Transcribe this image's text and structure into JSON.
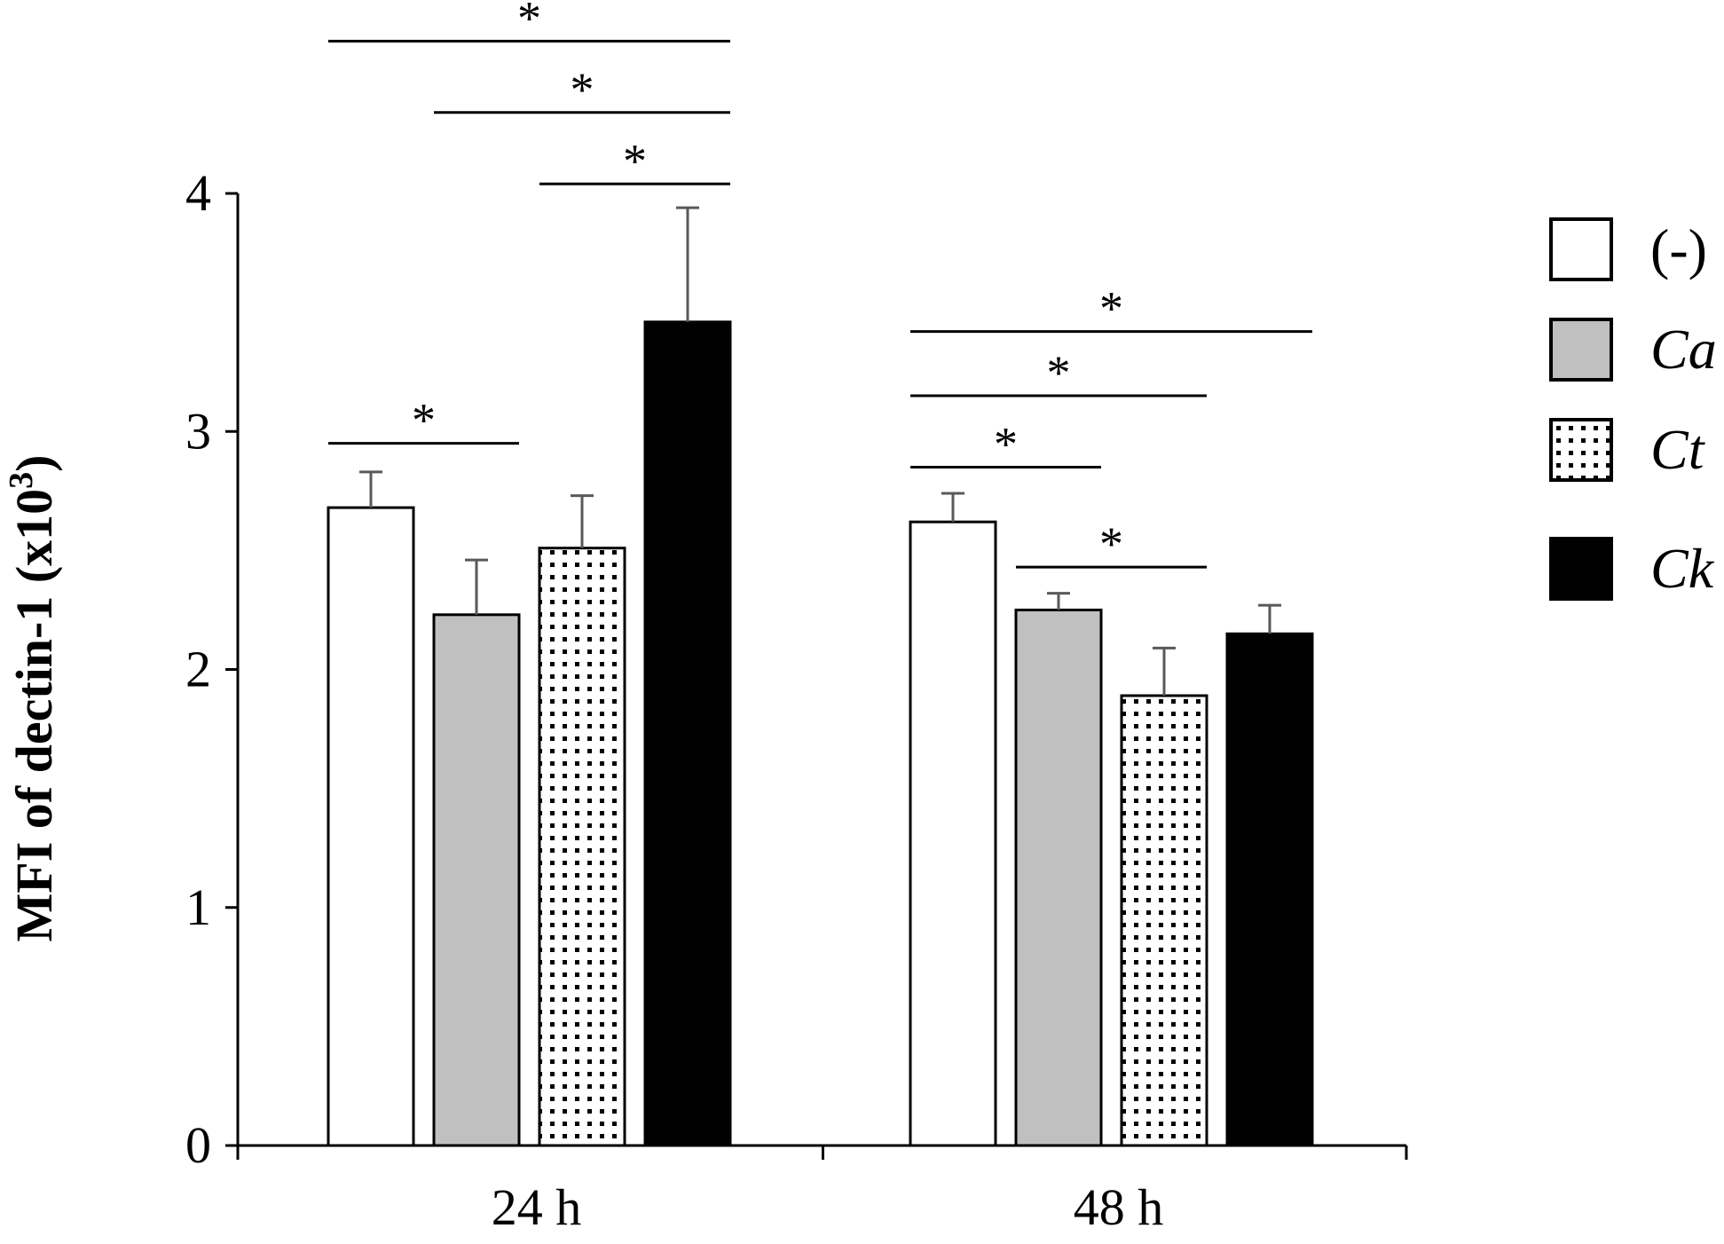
{
  "chart_data": {
    "type": "bar",
    "categories": [
      "24 h",
      "48 h"
    ],
    "series": [
      {
        "name": "(-)",
        "italic": false,
        "fill": "white",
        "values": [
          2.68,
          2.62
        ],
        "errors": [
          0.15,
          0.12
        ]
      },
      {
        "name": "Ca",
        "italic": true,
        "fill": "gray",
        "values": [
          2.23,
          2.25
        ],
        "errors": [
          0.23,
          0.07
        ]
      },
      {
        "name": "Ct",
        "italic": true,
        "fill": "dotted",
        "values": [
          2.51,
          1.89
        ],
        "errors": [
          0.22,
          0.2
        ]
      },
      {
        "name": "Ck",
        "italic": true,
        "fill": "black",
        "values": [
          3.46,
          2.15
        ],
        "errors": [
          0.48,
          0.12
        ]
      }
    ],
    "ylabel": "MFI of dectin-1 (x10",
    "ylabel_superscript": "3",
    "ylabel_close": ")",
    "ylim": [
      0,
      4
    ],
    "yticks": [
      0,
      1,
      2,
      3,
      4
    ],
    "ytick_labels": [
      "0",
      "1",
      "2",
      "3",
      "4"
    ],
    "legend_position": "right",
    "colors": {
      "white": "#ffffff",
      "gray": "#c0c0c0",
      "black": "#000000",
      "dot": "#000000",
      "error_bar": "#595959"
    },
    "significance": [
      {
        "category": 0,
        "from": 0,
        "to": 3,
        "y": 4.64,
        "label": "*"
      },
      {
        "category": 0,
        "from": 1,
        "to": 3,
        "y": 4.34,
        "label": "*"
      },
      {
        "category": 0,
        "from": 2,
        "to": 3,
        "y": 4.04,
        "label": "*"
      },
      {
        "category": 0,
        "from": 0,
        "to": 1,
        "y": 2.95,
        "label": "*"
      },
      {
        "category": 1,
        "from": 0,
        "to": 3,
        "y": 3.42,
        "label": "*"
      },
      {
        "category": 1,
        "from": 0,
        "to": 2,
        "y": 3.15,
        "label": "*"
      },
      {
        "category": 1,
        "from": 0,
        "to": 1,
        "y": 2.85,
        "label": "*"
      },
      {
        "category": 1,
        "from": 1,
        "to": 2,
        "y": 2.43,
        "label": "*"
      }
    ]
  }
}
